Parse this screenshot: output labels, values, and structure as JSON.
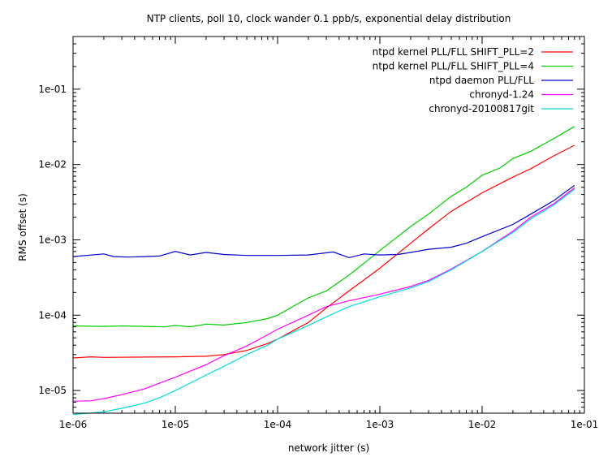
{
  "chart_data": {
    "type": "line",
    "title": "NTP clients, poll 10, clock wander 0.1 ppb/s, exponential delay distribution",
    "xlabel": "network jitter (s)",
    "ylabel": "RMS offset (s)",
    "xscale": "log",
    "yscale": "log",
    "xlim": [
      1e-06,
      0.1
    ],
    "ylim": [
      5e-06,
      0.5
    ],
    "legend_position": "top-right",
    "grid": false,
    "x_tick_labels": [
      "1e-06",
      "1e-05",
      "1e-04",
      "1e-03",
      "1e-02",
      "1e-01"
    ],
    "y_tick_labels": [
      "1e-05",
      "1e-04",
      "1e-03",
      "1e-02",
      "1e-01"
    ],
    "series": [
      {
        "name": "ntpd kernel PLL/FLL SHIFT_PLL=2",
        "color": "#ff0000",
        "points": [
          [
            1e-06,
            2.7e-05
          ],
          [
            1.5e-06,
            2.8e-05
          ],
          [
            2e-06,
            2.75e-05
          ],
          [
            5e-06,
            2.78e-05
          ],
          [
            1e-05,
            2.8e-05
          ],
          [
            2e-05,
            2.85e-05
          ],
          [
            3e-05,
            3e-05
          ],
          [
            5e-05,
            3.4e-05
          ],
          [
            8e-05,
            4.2e-05
          ],
          [
            0.0001,
            4.8e-05
          ],
          [
            0.0002,
            8e-05
          ],
          [
            0.0003,
            0.000125
          ],
          [
            0.0005,
            0.00021
          ],
          [
            0.001,
            0.00042
          ],
          [
            0.002,
            0.0009
          ],
          [
            0.003,
            0.0014
          ],
          [
            0.005,
            0.0024
          ],
          [
            0.01,
            0.0042
          ],
          [
            0.02,
            0.0068
          ],
          [
            0.03,
            0.0088
          ],
          [
            0.05,
            0.013
          ],
          [
            0.08,
            0.018
          ]
        ]
      },
      {
        "name": "ntpd kernel PLL/FLL SHIFT_PLL=4",
        "color": "#00cc00",
        "points": [
          [
            1e-06,
            7.2e-05
          ],
          [
            2e-06,
            7.1e-05
          ],
          [
            3e-06,
            7.2e-05
          ],
          [
            5e-06,
            7.1e-05
          ],
          [
            8e-06,
            7e-05
          ],
          [
            1e-05,
            7.3e-05
          ],
          [
            1.4e-05,
            7e-05
          ],
          [
            2e-05,
            7.6e-05
          ],
          [
            3e-05,
            7.4e-05
          ],
          [
            5e-05,
            8e-05
          ],
          [
            8e-05,
            9e-05
          ],
          [
            0.0001,
            0.0001
          ],
          [
            0.0002,
            0.00017
          ],
          [
            0.0003,
            0.00021
          ],
          [
            0.0005,
            0.00034
          ],
          [
            0.001,
            0.00072
          ],
          [
            0.002,
            0.0015
          ],
          [
            0.003,
            0.0022
          ],
          [
            0.005,
            0.0038
          ],
          [
            0.007,
            0.005
          ],
          [
            0.01,
            0.0072
          ],
          [
            0.015,
            0.009
          ],
          [
            0.02,
            0.012
          ],
          [
            0.03,
            0.015
          ],
          [
            0.05,
            0.022
          ],
          [
            0.08,
            0.032
          ]
        ]
      },
      {
        "name": "ntpd daemon PLL/FLL",
        "color": "#0000cc",
        "points": [
          [
            1e-06,
            0.0006
          ],
          [
            2e-06,
            0.00065
          ],
          [
            2.5e-06,
            0.0006
          ],
          [
            3.5e-06,
            0.00059
          ],
          [
            5e-06,
            0.0006
          ],
          [
            7e-06,
            0.00061
          ],
          [
            1e-05,
            0.0007
          ],
          [
            1.4e-05,
            0.00063
          ],
          [
            2e-05,
            0.00068
          ],
          [
            3e-05,
            0.00064
          ],
          [
            5e-05,
            0.00062
          ],
          [
            0.0001,
            0.00062
          ],
          [
            0.0002,
            0.00063
          ],
          [
            0.00035,
            0.00069
          ],
          [
            0.0005,
            0.00058
          ],
          [
            0.0007,
            0.00065
          ],
          [
            0.001,
            0.00063
          ],
          [
            0.0015,
            0.00064
          ],
          [
            0.002,
            0.00068
          ],
          [
            0.003,
            0.00075
          ],
          [
            0.005,
            0.0008
          ],
          [
            0.007,
            0.0009
          ],
          [
            0.01,
            0.0011
          ],
          [
            0.02,
            0.0016
          ],
          [
            0.03,
            0.0022
          ],
          [
            0.05,
            0.0033
          ],
          [
            0.08,
            0.0053
          ]
        ]
      },
      {
        "name": "chronyd-1.24",
        "color": "#ff00ff",
        "points": [
          [
            1e-06,
            7.2e-06
          ],
          [
            1.5e-06,
            7.3e-06
          ],
          [
            2e-06,
            7.8e-06
          ],
          [
            3e-06,
            8.8e-06
          ],
          [
            5e-06,
            1.05e-05
          ],
          [
            7e-06,
            1.25e-05
          ],
          [
            1e-05,
            1.5e-05
          ],
          [
            2e-05,
            2.2e-05
          ],
          [
            3e-05,
            2.9e-05
          ],
          [
            5e-05,
            3.9e-05
          ],
          [
            8e-05,
            5.5e-05
          ],
          [
            0.0001,
            6.5e-05
          ],
          [
            0.0002,
            0.0001
          ],
          [
            0.0003,
            0.00013
          ],
          [
            0.0005,
            0.000155
          ],
          [
            0.001,
            0.00019
          ],
          [
            0.002,
            0.00024
          ],
          [
            0.003,
            0.00029
          ],
          [
            0.005,
            0.00041
          ],
          [
            0.01,
            0.0007
          ],
          [
            0.02,
            0.0013
          ],
          [
            0.03,
            0.002
          ],
          [
            0.05,
            0.003
          ],
          [
            0.08,
            0.0049
          ]
        ]
      },
      {
        "name": "chronyd-20100817git",
        "color": "#00dddd",
        "points": [
          [
            1e-06,
            4.8e-06
          ],
          [
            2e-06,
            5.2e-06
          ],
          [
            3e-06,
            5.8e-06
          ],
          [
            5e-06,
            6.8e-06
          ],
          [
            7e-06,
            8e-06
          ],
          [
            1e-05,
            1e-05
          ],
          [
            2e-05,
            1.6e-05
          ],
          [
            3e-05,
            2.1e-05
          ],
          [
            5e-05,
            3e-05
          ],
          [
            8e-05,
            4e-05
          ],
          [
            0.0001,
            4.8e-05
          ],
          [
            0.0002,
            7.3e-05
          ],
          [
            0.0003,
            9.5e-05
          ],
          [
            0.0005,
            0.00013
          ],
          [
            0.001,
            0.000175
          ],
          [
            0.002,
            0.00023
          ],
          [
            0.003,
            0.00028
          ],
          [
            0.005,
            0.0004
          ],
          [
            0.01,
            0.0007
          ],
          [
            0.02,
            0.00125
          ],
          [
            0.03,
            0.0019
          ],
          [
            0.05,
            0.0029
          ],
          [
            0.08,
            0.0047
          ]
        ]
      }
    ]
  }
}
